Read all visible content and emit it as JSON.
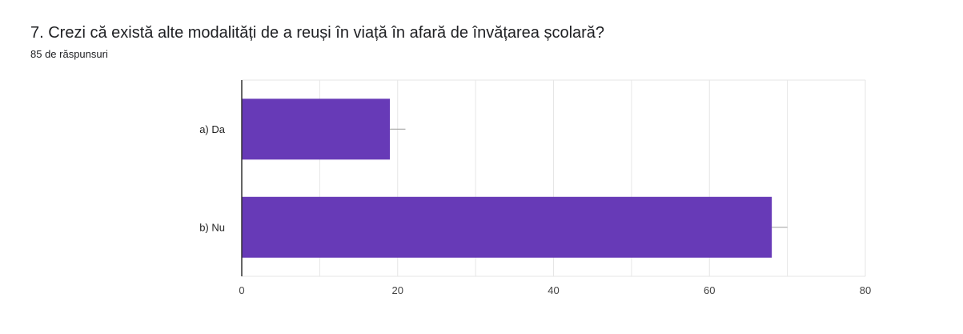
{
  "question": {
    "title": "7. Crezi că există alte modalități de a reuși în viață în afară de învățarea școlară?",
    "response_count": "85 de răspunsuri"
  },
  "colors": {
    "bar": "#673ab7",
    "grid": "#e6e6e6",
    "axis": "#333333",
    "error_bar": "#9e9e9e"
  },
  "chart_data": {
    "type": "bar",
    "orientation": "horizontal",
    "categories": [
      "a) Da",
      "b) Nu"
    ],
    "values": [
      19,
      68
    ],
    "error_bar_upper": [
      21,
      70
    ],
    "xlim": [
      0,
      80
    ],
    "xticks": [
      0,
      20,
      40,
      60,
      80
    ],
    "grid": true,
    "title": "",
    "xlabel": "",
    "ylabel": ""
  }
}
